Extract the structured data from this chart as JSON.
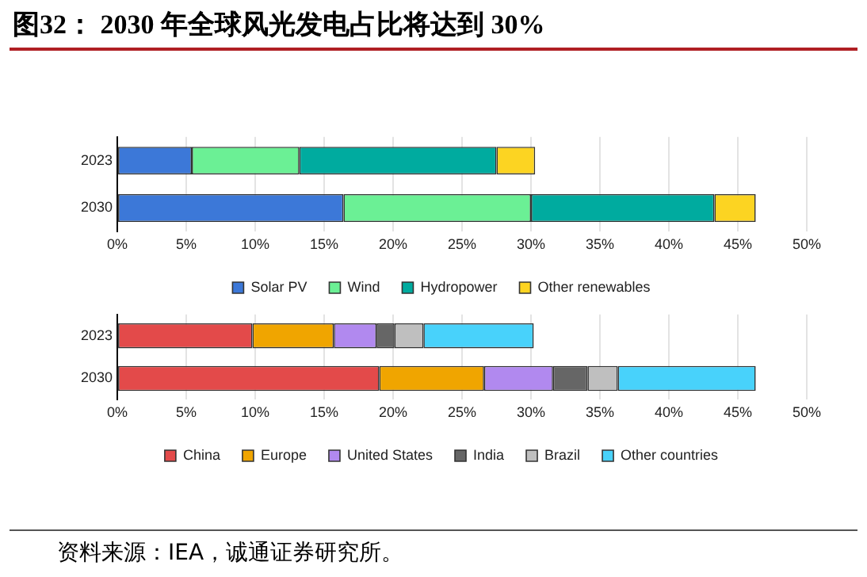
{
  "chart_data": [
    {
      "type": "bar",
      "title": "图32： 2030 年全球风光发电占比将达到 30%",
      "orientation": "horizontal",
      "stacked": true,
      "categories": [
        "2023",
        "2030"
      ],
      "series": [
        {
          "name": "Solar PV",
          "color": "#3c78d8",
          "values": [
            5.4,
            16.4
          ]
        },
        {
          "name": "Wind",
          "color": "#6bf095",
          "values": [
            7.8,
            13.6
          ]
        },
        {
          "name": "Hydropower",
          "color": "#00ab9f",
          "values": [
            14.3,
            13.3
          ]
        },
        {
          "name": "Other renewables",
          "color": "#fcd422",
          "values": [
            2.8,
            3.0
          ]
        }
      ],
      "xlim": [
        0,
        50
      ],
      "xticks": [
        {
          "value": 0,
          "label": "0%"
        },
        {
          "value": 5,
          "label": "5%"
        },
        {
          "value": 10,
          "label": "10%"
        },
        {
          "value": 15,
          "label": "15%"
        },
        {
          "value": 20,
          "label": "20%"
        },
        {
          "value": 25,
          "label": "25%"
        },
        {
          "value": 30,
          "label": "30%"
        },
        {
          "value": 35,
          "label": "35%"
        },
        {
          "value": 40,
          "label": "40%"
        },
        {
          "value": 45,
          "label": "45%"
        },
        {
          "value": 50,
          "label": "50%"
        }
      ],
      "grid": "x",
      "legend": "bottom"
    },
    {
      "type": "bar",
      "orientation": "horizontal",
      "stacked": true,
      "categories": [
        "2023",
        "2030"
      ],
      "series": [
        {
          "name": "China",
          "color": "#e34a4a",
          "values": [
            9.8,
            19.0
          ]
        },
        {
          "name": "Europe",
          "color": "#f0a500",
          "values": [
            5.9,
            7.6
          ]
        },
        {
          "name": "United States",
          "color": "#b189ef",
          "values": [
            3.1,
            5.0
          ]
        },
        {
          "name": "India",
          "color": "#666666",
          "values": [
            1.3,
            2.5
          ]
        },
        {
          "name": "Brazil",
          "color": "#bfbfbf",
          "values": [
            2.1,
            2.2
          ]
        },
        {
          "name": "Other countries",
          "color": "#48d2fb",
          "values": [
            8.0,
            10.0
          ]
        }
      ],
      "xlim": [
        0,
        50
      ],
      "xticks": [
        {
          "value": 0,
          "label": "0%"
        },
        {
          "value": 5,
          "label": "5%"
        },
        {
          "value": 10,
          "label": "10%"
        },
        {
          "value": 15,
          "label": "15%"
        },
        {
          "value": 20,
          "label": "20%"
        },
        {
          "value": 25,
          "label": "25%"
        },
        {
          "value": 30,
          "label": "30%"
        },
        {
          "value": 35,
          "label": "35%"
        },
        {
          "value": 40,
          "label": "40%"
        },
        {
          "value": 45,
          "label": "45%"
        },
        {
          "value": 50,
          "label": "50%"
        }
      ],
      "grid": "x",
      "legend": "bottom",
      "annotations": [
        "资料来源：IEA，诚通证券研究所。"
      ]
    }
  ]
}
